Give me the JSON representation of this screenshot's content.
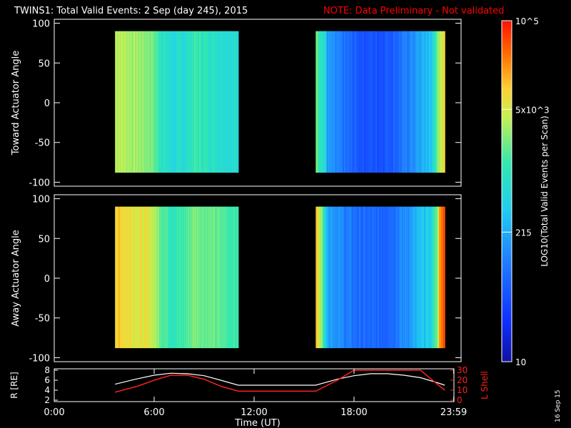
{
  "header": {
    "title": "TWINS1: Total Valid Events:  2 Sep (day 245), 2015",
    "note": "NOTE: Data Preliminary - Not validated"
  },
  "footer": {
    "stamp": "16 Sep 15"
  },
  "colors": {
    "background": "#000000",
    "note": "#ff0000",
    "orbit_R": "#ffffff",
    "orbit_L": "#ff2020"
  },
  "chart_data": [
    {
      "type": "heatmap",
      "ylabel": "Toward Actuator Angle",
      "ylim": [
        -105,
        105
      ],
      "y_ticks": [
        "100",
        "50",
        "0",
        "-50",
        "-100"
      ],
      "y_range_data": [
        -88,
        90
      ],
      "x_range_hours": [
        0,
        24
      ],
      "data_intervals_hours": [
        [
          3.65,
          11.05
        ],
        [
          15.7,
          23.45
        ]
      ],
      "colorscale": "log",
      "note": "value per time column as log10 fraction of colorbar"
    },
    {
      "type": "heatmap",
      "ylabel": "Away Actuator Angle",
      "ylim": [
        -105,
        105
      ],
      "y_ticks": [
        "100",
        "50",
        "0",
        "-50",
        "-100"
      ],
      "y_range_data": [
        -88,
        90
      ],
      "x_range_hours": [
        0,
        24
      ],
      "data_intervals_hours": [
        [
          3.65,
          11.05
        ],
        [
          15.7,
          23.45
        ]
      ]
    },
    {
      "type": "line",
      "ylabel": "R [RE]",
      "ylabel_right": "L Shell",
      "ylim_left": [
        2,
        8
      ],
      "ylim_right": [
        0,
        30
      ],
      "y_ticks_left": [
        "8",
        "6",
        "4",
        "2"
      ],
      "y_ticks_right": [
        "30",
        "20",
        "10",
        "0"
      ],
      "xlabel": "Time (UT)",
      "x_ticks": [
        "0:00",
        "6:00",
        "12:00",
        "18:00",
        "23:59"
      ],
      "x_ticks_hours": [
        0,
        6,
        12,
        18,
        23.983
      ],
      "series": [
        {
          "name": "R",
          "x": [
            3.65,
            5,
            6,
            7,
            8,
            9,
            10,
            11.05,
            15.7,
            17,
            18,
            19,
            20,
            21,
            22,
            23,
            23.45
          ],
          "y": [
            5.2,
            6.3,
            7.0,
            7.4,
            7.3,
            6.9,
            6.0,
            5.0,
            5.0,
            6.2,
            6.9,
            7.3,
            7.3,
            7.0,
            6.5,
            5.5,
            5.0
          ]
        },
        {
          "name": "L",
          "x": [
            3.65,
            5,
            6,
            7,
            8,
            9,
            10,
            11.05,
            15.7,
            17,
            18,
            22,
            23,
            23.45
          ],
          "y": [
            8,
            14,
            20,
            25,
            25,
            21,
            14,
            9,
            9,
            20,
            30,
            30,
            16,
            10
          ]
        }
      ]
    },
    {
      "type": "colorbar",
      "ylabel": "LOG10(Total Valid Events per Scan)",
      "labels": [
        {
          "text": "10^5",
          "pos": 1.0
        },
        {
          "text": "5x10^3",
          "pos": 0.74
        },
        {
          "text": "215",
          "pos": 0.38
        },
        {
          "text": "10",
          "pos": 0.0
        }
      ],
      "stops": [
        "#1010a0",
        "#1030ff",
        "#2080ff",
        "#20d0f0",
        "#30e8b0",
        "#c8f050",
        "#ffd030",
        "#ff7000",
        "#ff1000"
      ]
    }
  ]
}
